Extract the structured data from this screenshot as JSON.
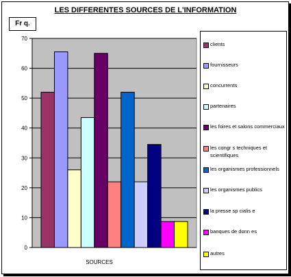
{
  "chart_data": {
    "type": "bar",
    "title": "LES DIFFERENTES SOURCES DE L'INFORMATION",
    "ylabel": "Fr q.",
    "xlabel": "SOURCES",
    "ylim": [
      0,
      70
    ],
    "yticks": [
      0,
      10,
      20,
      30,
      40,
      50,
      60,
      70
    ],
    "grid": true,
    "legend_position": "right",
    "series": [
      {
        "name": "clients",
        "value": 52,
        "color": "#993366"
      },
      {
        "name": "fournisseurs",
        "value": 65.5,
        "color": "#9999ff"
      },
      {
        "name": "concurrents",
        "value": 26,
        "color": "#ffffcc"
      },
      {
        "name": "partenaires",
        "value": 43.5,
        "color": "#ccffff"
      },
      {
        "name": "les foires et salons commerciaux",
        "value": 65,
        "color": "#660066"
      },
      {
        "name": "les congr s techniques et scientifiques",
        "value": 22,
        "color": "#ff8080"
      },
      {
        "name": "les organismes professionnels",
        "value": 52,
        "color": "#0066cc"
      },
      {
        "name": "les organismes publics",
        "value": 22,
        "color": "#ccccff"
      },
      {
        "name": "la presse sp cialis  e",
        "value": 34.5,
        "color": "#000080"
      },
      {
        "name": "banques de donn es",
        "value": 8.7,
        "color": "#ff00ff"
      },
      {
        "name": "autres",
        "value": 8.7,
        "color": "#ffff00"
      }
    ]
  }
}
